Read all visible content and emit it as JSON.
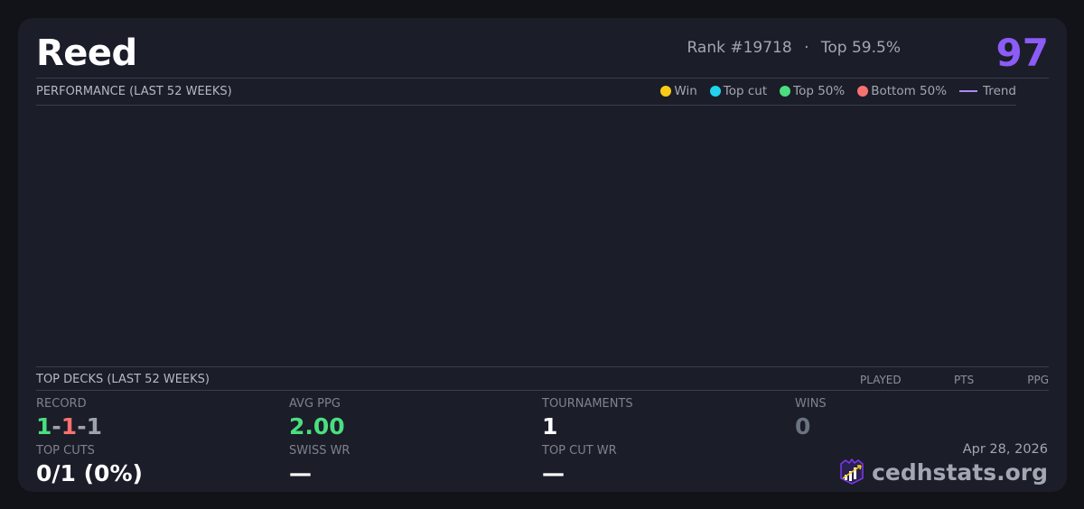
{
  "header": {
    "player_name": "Reed",
    "rank": "Rank #19718",
    "separator": "·",
    "top_percent": "Top 59.5%",
    "score": "97"
  },
  "performance": {
    "title": "PERFORMANCE (LAST 52 WEEKS)",
    "legend": [
      {
        "label": "Win",
        "color": "#facc15"
      },
      {
        "label": "Top cut",
        "color": "#22d3ee"
      },
      {
        "label": "Top 50%",
        "color": "#4ade80"
      },
      {
        "label": "Bottom 50%",
        "color": "#f87171"
      },
      {
        "label": "Trend",
        "color": "#a78bfa"
      }
    ]
  },
  "top_decks": {
    "title": "TOP DECKS (LAST 52 WEEKS)",
    "columns": [
      "PLAYED",
      "PTS",
      "PPG"
    ]
  },
  "stats": {
    "record": {
      "label": "RECORD",
      "wins": "1",
      "losses": "1",
      "draws": "1",
      "sep": "-"
    },
    "avg_ppg": {
      "label": "AVG PPG",
      "value": "2.00"
    },
    "tournaments": {
      "label": "TOURNAMENTS",
      "value": "1"
    },
    "wins": {
      "label": "WINS",
      "value": "0"
    },
    "top_cuts": {
      "label": "TOP CUTS",
      "value": "0/1 (0%)"
    },
    "swiss_wr": {
      "label": "SWISS WR",
      "value": "—"
    },
    "top_cut_wr": {
      "label": "TOP CUT WR",
      "value": "—"
    }
  },
  "footer": {
    "date": "Apr 28, 2026",
    "brand": "cedhstats.org",
    "logo_icon": "chart-crown-logo"
  },
  "colors": {
    "accent": "#8b5cf6",
    "positive": "#4ade80",
    "negative": "#f87171",
    "neutral": "#9ca3af"
  }
}
